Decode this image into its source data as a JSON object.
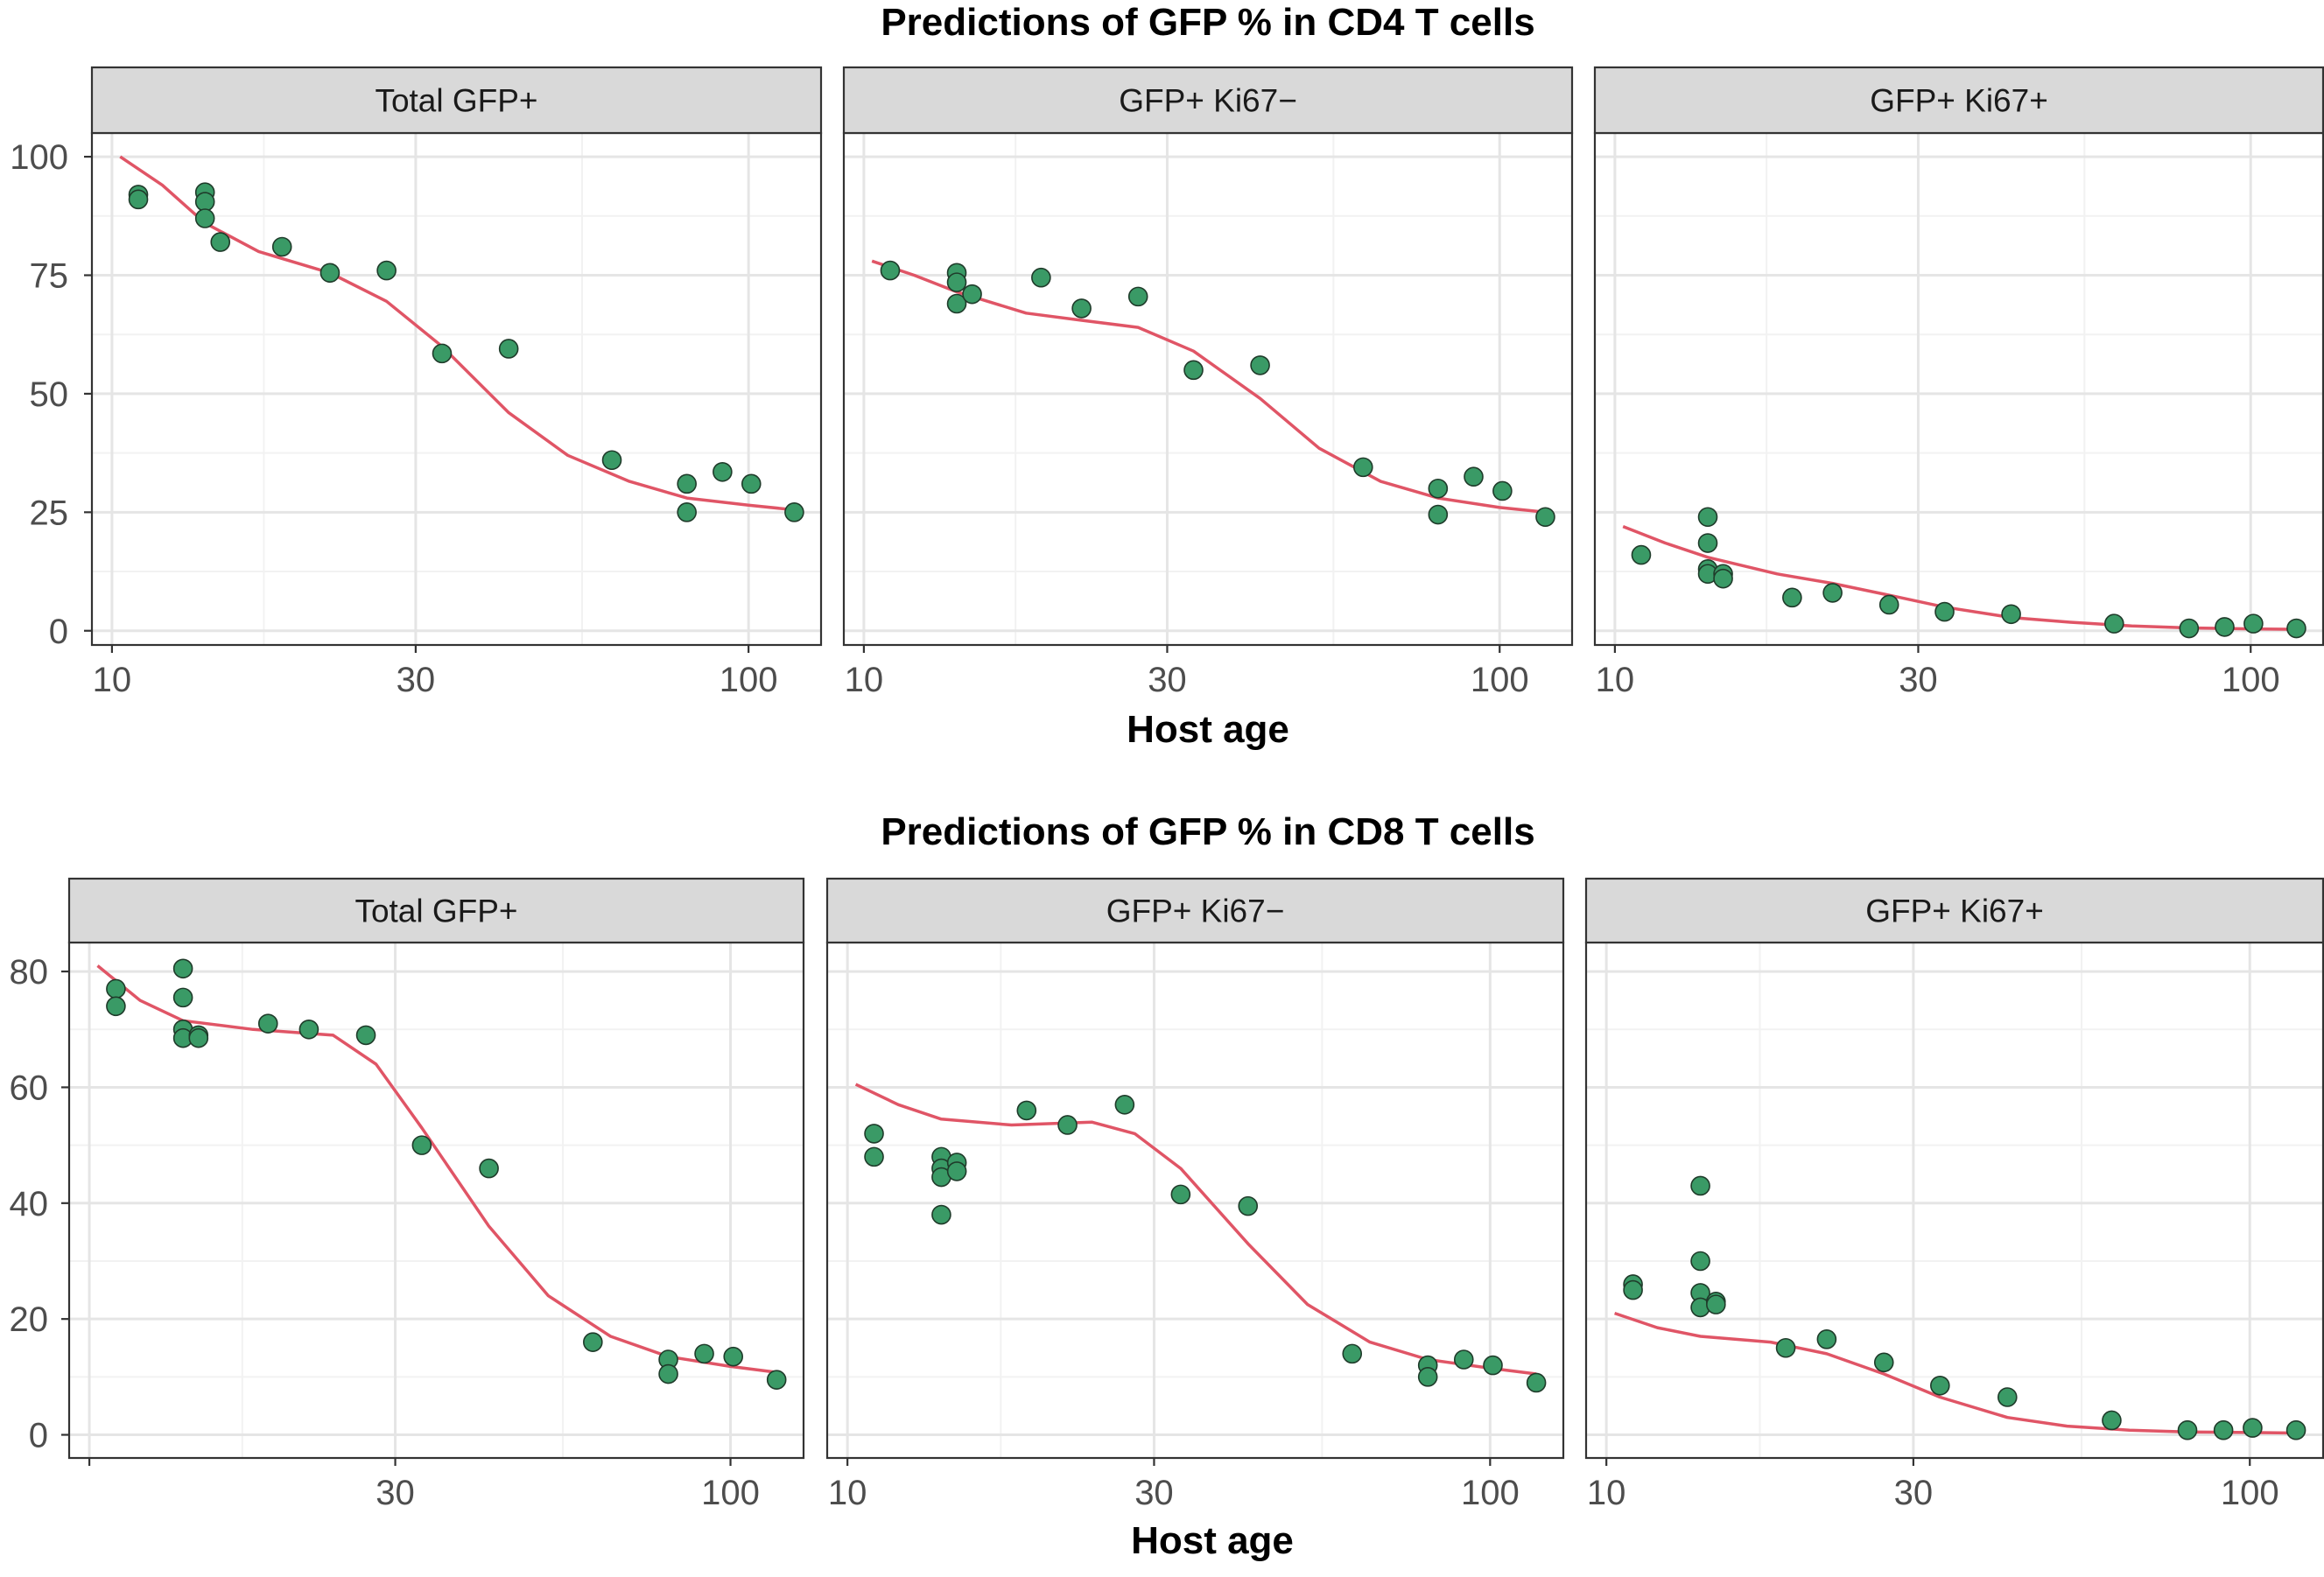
{
  "colors": {
    "fit_line": "#e05566",
    "point_fill": "#3a9a66",
    "point_stroke": "#1f3b2a",
    "strip_bg": "#d9d9d9",
    "grid_major": "#e5e5e5",
    "grid_minor": "#f2f2f2"
  },
  "chart_data": [
    {
      "type": "scatter",
      "title": "Predictions of GFP % in CD4 T cells",
      "xlabel": "Host age",
      "x_scale": "log",
      "xlim": [
        9.3,
        130
      ],
      "ylim": [
        -3,
        105
      ],
      "x_ticks": [
        "10",
        "30",
        "100"
      ],
      "y_ticks": [
        "0",
        "25",
        "50",
        "75",
        "100"
      ],
      "panels": [
        {
          "label": "Total GFP+",
          "points": [
            [
              11,
              92
            ],
            [
              11,
              91
            ],
            [
              14,
              92.5
            ],
            [
              14,
              90.5
            ],
            [
              14,
              87
            ],
            [
              14.8,
              82
            ],
            [
              18.5,
              81
            ],
            [
              22,
              75.5
            ],
            [
              27,
              76
            ],
            [
              33,
              58.5
            ],
            [
              42,
              59.5
            ],
            [
              61,
              36
            ],
            [
              80,
              31
            ],
            [
              80,
              25
            ],
            [
              91,
              33.5
            ],
            [
              101,
              31
            ],
            [
              118,
              25
            ]
          ],
          "fit": [
            [
              10.3,
              100
            ],
            [
              12,
              94
            ],
            [
              14,
              86
            ],
            [
              17,
              80
            ],
            [
              22,
              75.5
            ],
            [
              27,
              69.5
            ],
            [
              33,
              60
            ],
            [
              42,
              46
            ],
            [
              52,
              37
            ],
            [
              65,
              31.5
            ],
            [
              80,
              28
            ],
            [
              100,
              26.5
            ],
            [
              118,
              25.5
            ]
          ]
        },
        {
          "label": "GFP+ Ki67−",
          "points": [
            [
              11,
              76
            ],
            [
              14,
              75.5
            ],
            [
              14,
              73.5
            ],
            [
              14,
              69
            ],
            [
              14.8,
              71
            ],
            [
              19,
              74.5
            ],
            [
              22,
              68
            ],
            [
              27,
              70.5
            ],
            [
              33,
              55
            ],
            [
              42,
              56
            ],
            [
              61,
              34.5
            ],
            [
              80,
              30
            ],
            [
              80,
              24.5
            ],
            [
              91,
              32.5
            ],
            [
              101,
              29.5
            ],
            [
              118,
              24
            ]
          ],
          "fit": [
            [
              10.3,
              78
            ],
            [
              12,
              75
            ],
            [
              14,
              71.5
            ],
            [
              18,
              67
            ],
            [
              22,
              65.5
            ],
            [
              27,
              64
            ],
            [
              33,
              59
            ],
            [
              42,
              49
            ],
            [
              52,
              38.5
            ],
            [
              65,
              31.5
            ],
            [
              80,
              28
            ],
            [
              100,
              26
            ],
            [
              118,
              25
            ]
          ]
        },
        {
          "label": "GFP+ Ki67+",
          "points": [
            [
              11,
              16
            ],
            [
              14,
              24
            ],
            [
              14,
              18.5
            ],
            [
              14,
              13
            ],
            [
              14,
              12
            ],
            [
              14.8,
              12
            ],
            [
              14.8,
              11
            ],
            [
              19,
              7
            ],
            [
              22,
              8
            ],
            [
              27,
              5.5
            ],
            [
              33,
              4
            ],
            [
              42,
              3.5
            ],
            [
              61,
              1.5
            ],
            [
              80,
              0.5
            ],
            [
              91,
              0.8
            ],
            [
              101,
              1.5
            ],
            [
              118,
              0.5
            ]
          ],
          "fit": [
            [
              10.3,
              22
            ],
            [
              12,
              18.5
            ],
            [
              14,
              15.5
            ],
            [
              18,
              12
            ],
            [
              22,
              10
            ],
            [
              27,
              7.5
            ],
            [
              33,
              5
            ],
            [
              42,
              2.8
            ],
            [
              52,
              1.8
            ],
            [
              65,
              1
            ],
            [
              80,
              0.6
            ],
            [
              100,
              0.4
            ],
            [
              118,
              0.3
            ]
          ]
        }
      ]
    },
    {
      "type": "scatter",
      "title": "Predictions of GFP % in CD8 T cells",
      "xlabel": "Host age",
      "x_scale": "log",
      "xlim": [
        9.3,
        130
      ],
      "ylim": [
        -4,
        85
      ],
      "x_ticks_per_panel": [
        [
          "30",
          "100"
        ],
        [
          "10",
          "30",
          "100"
        ],
        [
          "10",
          "30",
          "100"
        ]
      ],
      "y_ticks": [
        "0",
        "20",
        "40",
        "60",
        "80"
      ],
      "panels": [
        {
          "label": "Total GFP+",
          "points": [
            [
              11,
              77
            ],
            [
              11,
              74
            ],
            [
              14,
              80.5
            ],
            [
              14,
              75.5
            ],
            [
              14,
              70
            ],
            [
              14,
              68.5
            ],
            [
              14.8,
              69
            ],
            [
              14.8,
              68.5
            ],
            [
              19,
              71
            ],
            [
              22,
              70
            ],
            [
              27,
              69
            ],
            [
              33,
              50
            ],
            [
              42,
              46
            ],
            [
              61,
              16
            ],
            [
              80,
              13
            ],
            [
              80,
              10.5
            ],
            [
              91,
              14
            ],
            [
              101,
              13.5
            ],
            [
              118,
              9.5
            ]
          ],
          "fit": [
            [
              10.3,
              81
            ],
            [
              12,
              75
            ],
            [
              14,
              71.5
            ],
            [
              18,
              70
            ],
            [
              24,
              69
            ],
            [
              28,
              64
            ],
            [
              33,
              53
            ],
            [
              42,
              36
            ],
            [
              52,
              24
            ],
            [
              65,
              17
            ],
            [
              80,
              13.5
            ],
            [
              100,
              11.8
            ],
            [
              118,
              10.8
            ]
          ]
        },
        {
          "label": "GFP+ Ki67−",
          "points": [
            [
              11,
              52
            ],
            [
              11,
              48
            ],
            [
              14,
              48
            ],
            [
              14,
              46
            ],
            [
              14,
              44.5
            ],
            [
              14,
              38
            ],
            [
              14.8,
              47
            ],
            [
              14.8,
              45.5
            ],
            [
              19,
              56
            ],
            [
              22,
              53.5
            ],
            [
              27,
              57
            ],
            [
              33,
              41.5
            ],
            [
              42,
              39.5
            ],
            [
              61,
              14
            ],
            [
              80,
              12
            ],
            [
              80,
              10
            ],
            [
              91,
              13
            ],
            [
              101,
              12
            ],
            [
              118,
              9
            ]
          ],
          "fit": [
            [
              10.3,
              60.5
            ],
            [
              12,
              57
            ],
            [
              14,
              54.5
            ],
            [
              18,
              53.5
            ],
            [
              24,
              54
            ],
            [
              28,
              52
            ],
            [
              33,
              46
            ],
            [
              42,
              33
            ],
            [
              52,
              22.5
            ],
            [
              65,
              16
            ],
            [
              80,
              13
            ],
            [
              100,
              11.5
            ],
            [
              118,
              10.5
            ]
          ]
        },
        {
          "label": "GFP+ Ki67+",
          "points": [
            [
              11,
              26
            ],
            [
              11,
              25
            ],
            [
              14,
              43
            ],
            [
              14,
              30
            ],
            [
              14,
              24.5
            ],
            [
              14,
              22
            ],
            [
              14.8,
              23
            ],
            [
              14.8,
              22.5
            ],
            [
              19,
              15
            ],
            [
              22,
              16.5
            ],
            [
              27,
              12.5
            ],
            [
              33,
              8.5
            ],
            [
              42,
              6.5
            ],
            [
              61,
              2.5
            ],
            [
              80,
              0.8
            ],
            [
              91,
              0.8
            ],
            [
              101,
              1.2
            ],
            [
              118,
              0.8
            ]
          ],
          "fit": [
            [
              10.3,
              21
            ],
            [
              12,
              18.5
            ],
            [
              14,
              17
            ],
            [
              18,
              16
            ],
            [
              22,
              14
            ],
            [
              27,
              10.5
            ],
            [
              33,
              6.5
            ],
            [
              42,
              3
            ],
            [
              52,
              1.5
            ],
            [
              65,
              0.8
            ],
            [
              80,
              0.5
            ],
            [
              100,
              0.4
            ],
            [
              118,
              0.3
            ]
          ]
        }
      ]
    }
  ]
}
